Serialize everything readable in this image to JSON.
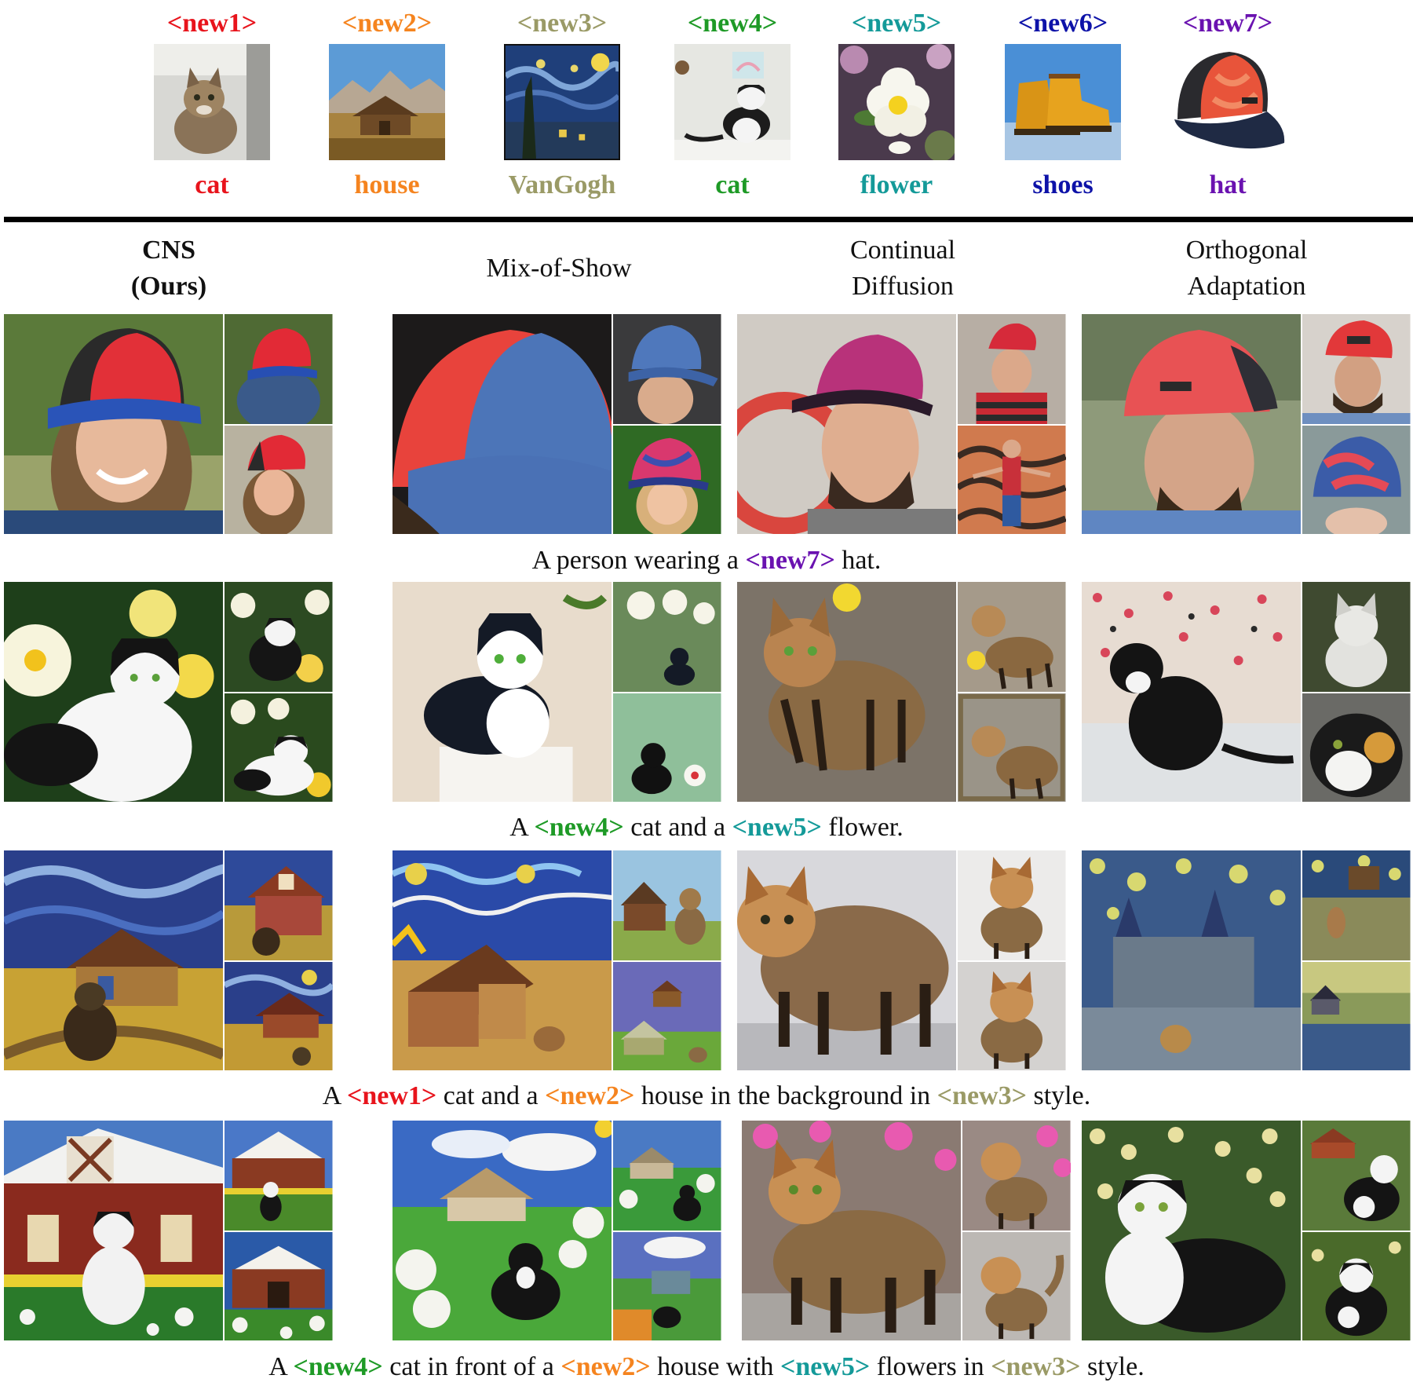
{
  "concepts": [
    {
      "token": "<new1>",
      "label": "cat",
      "color": "#e8141c",
      "icon": "fluffy-kitten-photo"
    },
    {
      "token": "<new2>",
      "label": "house",
      "color": "#f5841f",
      "icon": "barn-mountain-photo"
    },
    {
      "token": "<new3>",
      "label": "VanGogh",
      "color": "#9a9a66",
      "icon": "starry-night-painting"
    },
    {
      "token": "<new4>",
      "label": "cat",
      "color": "#1e9a26",
      "icon": "tuxedo-cat-photo"
    },
    {
      "token": "<new5>",
      "label": "flower",
      "color": "#149a99",
      "icon": "white-flower-photo"
    },
    {
      "token": "<new6>",
      "label": "shoes",
      "color": "#0d12a8",
      "icon": "yellow-boots-photo"
    },
    {
      "token": "<new7>",
      "label": "hat",
      "color": "#6a12b0",
      "icon": "red-trucker-hat-photo"
    }
  ],
  "methods": [
    {
      "line1": "CNS",
      "line2": "(Ours)"
    },
    {
      "line1": "Mix-of-Show",
      "line2": ""
    },
    {
      "line1": "Continual",
      "line2": "Diffusion"
    },
    {
      "line1": "Orthogonal",
      "line2": "Adaptation"
    }
  ],
  "captions": [
    {
      "parts": [
        {
          "text": "A person wearing a ",
          "token": false
        },
        {
          "text": "<new7>",
          "token": true,
          "color": "#6a12b0"
        },
        {
          "text": " hat.",
          "token": false
        }
      ]
    },
    {
      "parts": [
        {
          "text": "A ",
          "token": false
        },
        {
          "text": "<new4>",
          "token": true,
          "color": "#1e9a26"
        },
        {
          "text": " cat and a ",
          "token": false
        },
        {
          "text": "<new5>",
          "token": true,
          "color": "#149a99"
        },
        {
          "text": " flower.",
          "token": false
        }
      ]
    },
    {
      "parts": [
        {
          "text": "A ",
          "token": false
        },
        {
          "text": "<new1>",
          "token": true,
          "color": "#e8141c"
        },
        {
          "text": " cat and a ",
          "token": false
        },
        {
          "text": "<new2>",
          "token": true,
          "color": "#f5841f"
        },
        {
          "text": " house in the background in ",
          "token": false
        },
        {
          "text": "<new3>",
          "token": true,
          "color": "#9a9a66"
        },
        {
          "text": " style.",
          "token": false
        }
      ]
    },
    {
      "parts": [
        {
          "text": "A ",
          "token": false
        },
        {
          "text": "<new4>",
          "token": true,
          "color": "#1e9a26"
        },
        {
          "text": " cat in front of a ",
          "token": false
        },
        {
          "text": "<new2>",
          "token": true,
          "color": "#f5841f"
        },
        {
          "text": " house with ",
          "token": false
        },
        {
          "text": "<new5>",
          "token": true,
          "color": "#149a99"
        },
        {
          "text": " flowers in ",
          "token": false
        },
        {
          "text": "<new3>",
          "token": true,
          "color": "#9a9a66"
        },
        {
          "text": " style.",
          "token": false
        }
      ]
    }
  ],
  "grid_icons": [
    [
      "cns-hat-results",
      "mixofshow-hat-results",
      "continual-diffusion-hat-results",
      "orthogonal-adaptation-hat-results"
    ],
    [
      "cns-cat-flower-results",
      "mixofshow-cat-flower-results",
      "continual-diffusion-cat-flower-results",
      "orthogonal-adaptation-cat-flower-results"
    ],
    [
      "cns-cat-house-vangogh-results",
      "mixofshow-cat-house-vangogh-results",
      "continual-diffusion-cat-house-vangogh-results",
      "orthogonal-adaptation-cat-house-vangogh-results"
    ],
    [
      "cns-cat-house-flower-vangogh-results",
      "mixofshow-cat-house-flower-vangogh-results",
      "continual-diffusion-cat-house-flower-vangogh-results",
      "orthogonal-adaptation-cat-house-flower-vangogh-results"
    ]
  ]
}
